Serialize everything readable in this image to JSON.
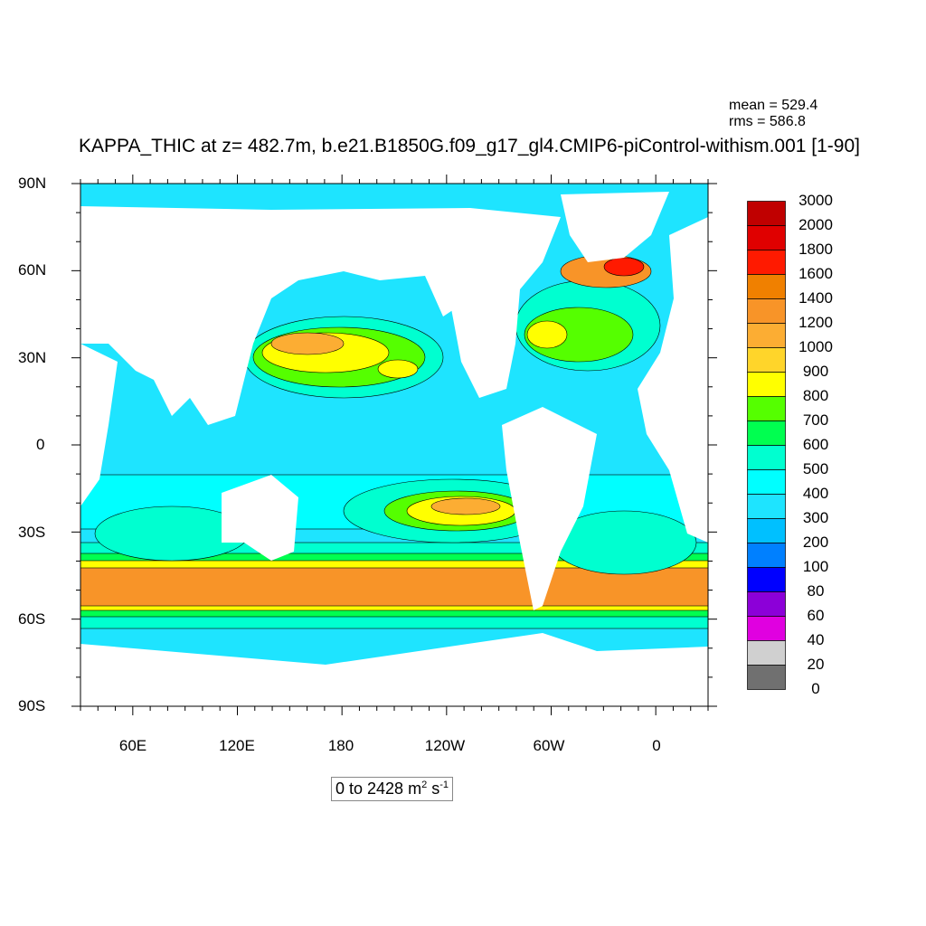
{
  "title": "KAPPA_THIC at z= 482.7m, b.e21.B1850G.f09_g17_gl4.CMIP6-piControl-withism.001 [1-90]",
  "stats": {
    "mean": "mean = 529.4",
    "rms": "rms = 586.8"
  },
  "range_label": {
    "text": "0 to 2428 m",
    "sup1": "2",
    "unit": " s",
    "sup2": "-1"
  },
  "y_ticks": [
    "90N",
    "60N",
    "30N",
    "0",
    "30S",
    "60S",
    "90S"
  ],
  "x_ticks": [
    "60E",
    "120E",
    "180",
    "120W",
    "60W",
    "0"
  ],
  "colorbar": {
    "labels": [
      "3000",
      "2000",
      "1800",
      "1600",
      "1400",
      "1200",
      "1000",
      "900",
      "800",
      "700",
      "600",
      "500",
      "400",
      "300",
      "200",
      "100",
      "80",
      "60",
      "40",
      "20",
      "0"
    ],
    "colors": [
      "#c00000",
      "#e00000",
      "#ff1a00",
      "#f08000",
      "#f89428",
      "#fcad33",
      "#ffd52a",
      "#ffff00",
      "#55ff00",
      "#00ff50",
      "#00ffd0",
      "#00ffff",
      "#1ee4ff",
      "#00c0ff",
      "#0080ff",
      "#0000ff",
      "#8c00d8",
      "#e000e0",
      "#d0d0d0",
      "#707070"
    ]
  },
  "map": {
    "ocean_color": "#1ee4ff",
    "land_color": "#ffffff"
  }
}
